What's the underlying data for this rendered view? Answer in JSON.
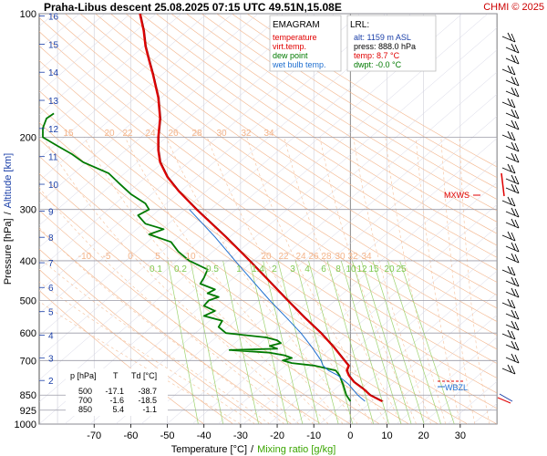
{
  "header": {
    "title": "Praha-Libus   descent   25.08.2025 07:15 UTC  49.51N,15.08E",
    "credit": "CHMI © 2025"
  },
  "chart_data": {
    "type": "line",
    "title": "EMAGRAM",
    "ylabel_pressure": "Pressure [hPa]",
    "ylabel_sep": "/",
    "ylabel_altitude": "Altitude [km]",
    "xlabel_temp": "Temperature [°C]",
    "xlabel_sep": "/",
    "xlabel_mixing": "Mixing ratio [g/kg]",
    "xlim": [
      -85,
      40
    ],
    "pressure_range": [
      1000,
      100
    ],
    "x_ticks": [
      "-70",
      "-60",
      "-50",
      "-40",
      "-30",
      "-20",
      "-10",
      "0",
      "10",
      "20",
      "30"
    ],
    "pressure_ticks": [
      "100",
      "200",
      "300",
      "400",
      "500",
      "600",
      "700",
      "850",
      "925",
      "1000"
    ],
    "altitude_ticks": [
      "2",
      "3",
      "4",
      "5",
      "6",
      "7",
      "8",
      "9",
      "10",
      "11",
      "12",
      "13",
      "14",
      "15",
      "16"
    ],
    "legend": [
      {
        "label": "temperature",
        "color": "#e00000"
      },
      {
        "label": "virt.temp.",
        "color": "#e00000"
      },
      {
        "label": "dew point",
        "color": "#007a00"
      },
      {
        "label": "wet bulb temp.",
        "color": "#1f6fd0"
      }
    ],
    "lrl": {
      "title": "LRL:",
      "alt": "alt: 1159 m ASL",
      "press": "press: 888.0 hPa",
      "temp": "temp: 8.7 °C",
      "dwpt": "dwpt: -0.0 °C"
    },
    "level_table": {
      "headers": [
        "p [hPa]",
        "T",
        "Td [°C]"
      ],
      "rows": [
        [
          "500",
          "-17.1",
          "-38.7"
        ],
        [
          "700",
          "-1.6",
          "-18.5"
        ],
        [
          "850",
          "5.4",
          "-1.1"
        ]
      ]
    },
    "markers": {
      "mxws": "MXWS",
      "wbzl": "WBZL"
    },
    "mixing_ratio_labels": [
      "0.1",
      "0.2",
      "0.5",
      "1",
      "1.4",
      "2",
      "3",
      "4",
      "6",
      "8",
      "10",
      "12",
      "15",
      "20",
      "25"
    ],
    "theta_labels_upper": [
      "15",
      "20",
      "22",
      "24",
      "26",
      "28",
      "30",
      "32",
      "34"
    ],
    "theta_labels_lower": [
      "-10",
      "-5",
      "0",
      "5",
      "10",
      "20",
      "22",
      "24",
      "26",
      "28",
      "30",
      "32",
      "34"
    ],
    "series": [
      {
        "name": "temperature",
        "color": "#e00000",
        "points": [
          [
            880,
            8.7
          ],
          [
            850,
            5.4
          ],
          [
            820,
            3.5
          ],
          [
            790,
            1.0
          ],
          [
            760,
            -0.5
          ],
          [
            740,
            -1.0
          ],
          [
            720,
            -0.5
          ],
          [
            700,
            -1.6
          ],
          [
            650,
            -4.5
          ],
          [
            600,
            -8.0
          ],
          [
            550,
            -12.5
          ],
          [
            500,
            -17.1
          ],
          [
            450,
            -22.0
          ],
          [
            400,
            -27.5
          ],
          [
            350,
            -34.0
          ],
          [
            300,
            -42.0
          ],
          [
            270,
            -47.0
          ],
          [
            250,
            -50.0
          ],
          [
            230,
            -52.0
          ],
          [
            215,
            -52.5
          ],
          [
            200,
            -52.5
          ],
          [
            180,
            -52.0
          ],
          [
            160,
            -52.5
          ],
          [
            140,
            -54.0
          ],
          [
            130,
            -55.0
          ],
          [
            120,
            -56.0
          ],
          [
            110,
            -56.5
          ],
          [
            100,
            -57.5
          ]
        ]
      },
      {
        "name": "dew point",
        "color": "#007a00",
        "points": [
          [
            880,
            0.0
          ],
          [
            850,
            -1.1
          ],
          [
            800,
            -2.0
          ],
          [
            760,
            -3.0
          ],
          [
            740,
            -4.0
          ],
          [
            720,
            -10.0
          ],
          [
            710,
            -16.0
          ],
          [
            700,
            -18.5
          ],
          [
            690,
            -16.0
          ],
          [
            680,
            -18.0
          ],
          [
            670,
            -22.0
          ],
          [
            660,
            -33.0
          ],
          [
            655,
            -20.0
          ],
          [
            645,
            -22.0
          ],
          [
            635,
            -19.0
          ],
          [
            625,
            -20.0
          ],
          [
            615,
            -23.0
          ],
          [
            600,
            -34.0
          ],
          [
            580,
            -36.0
          ],
          [
            560,
            -35.0
          ],
          [
            545,
            -40.0
          ],
          [
            530,
            -37.0
          ],
          [
            515,
            -40.0
          ],
          [
            500,
            -38.7
          ],
          [
            490,
            -36.0
          ],
          [
            480,
            -39.0
          ],
          [
            470,
            -37.0
          ],
          [
            455,
            -41.0
          ],
          [
            440,
            -40.0
          ],
          [
            420,
            -39.0
          ],
          [
            400,
            -44.0
          ],
          [
            380,
            -47.0
          ],
          [
            360,
            -49.0
          ],
          [
            345,
            -55.0
          ],
          [
            335,
            -51.0
          ],
          [
            325,
            -56.0
          ],
          [
            310,
            -58.0
          ],
          [
            300,
            -55.0
          ],
          [
            290,
            -56.0
          ],
          [
            275,
            -60.0
          ],
          [
            260,
            -63.0
          ],
          [
            245,
            -66.0
          ],
          [
            230,
            -73.0
          ],
          [
            220,
            -76.0
          ],
          [
            210,
            -80.0
          ],
          [
            200,
            -84.0
          ],
          [
            190,
            -84.0
          ],
          [
            180,
            -83.0
          ],
          [
            175,
            -81.0
          ]
        ]
      },
      {
        "name": "wet bulb temp.",
        "color": "#1f6fd0",
        "points": [
          [
            880,
            4.0
          ],
          [
            850,
            2.0
          ],
          [
            800,
            -0.5
          ],
          [
            760,
            -3.5
          ],
          [
            740,
            -6.0
          ],
          [
            720,
            -7.5
          ],
          [
            700,
            -8.0
          ],
          [
            650,
            -10.5
          ],
          [
            600,
            -13.5
          ],
          [
            550,
            -17.5
          ],
          [
            500,
            -22.0
          ],
          [
            450,
            -26.5
          ],
          [
            400,
            -31.5
          ],
          [
            350,
            -37.0
          ],
          [
            300,
            -44.0
          ]
        ]
      }
    ]
  }
}
